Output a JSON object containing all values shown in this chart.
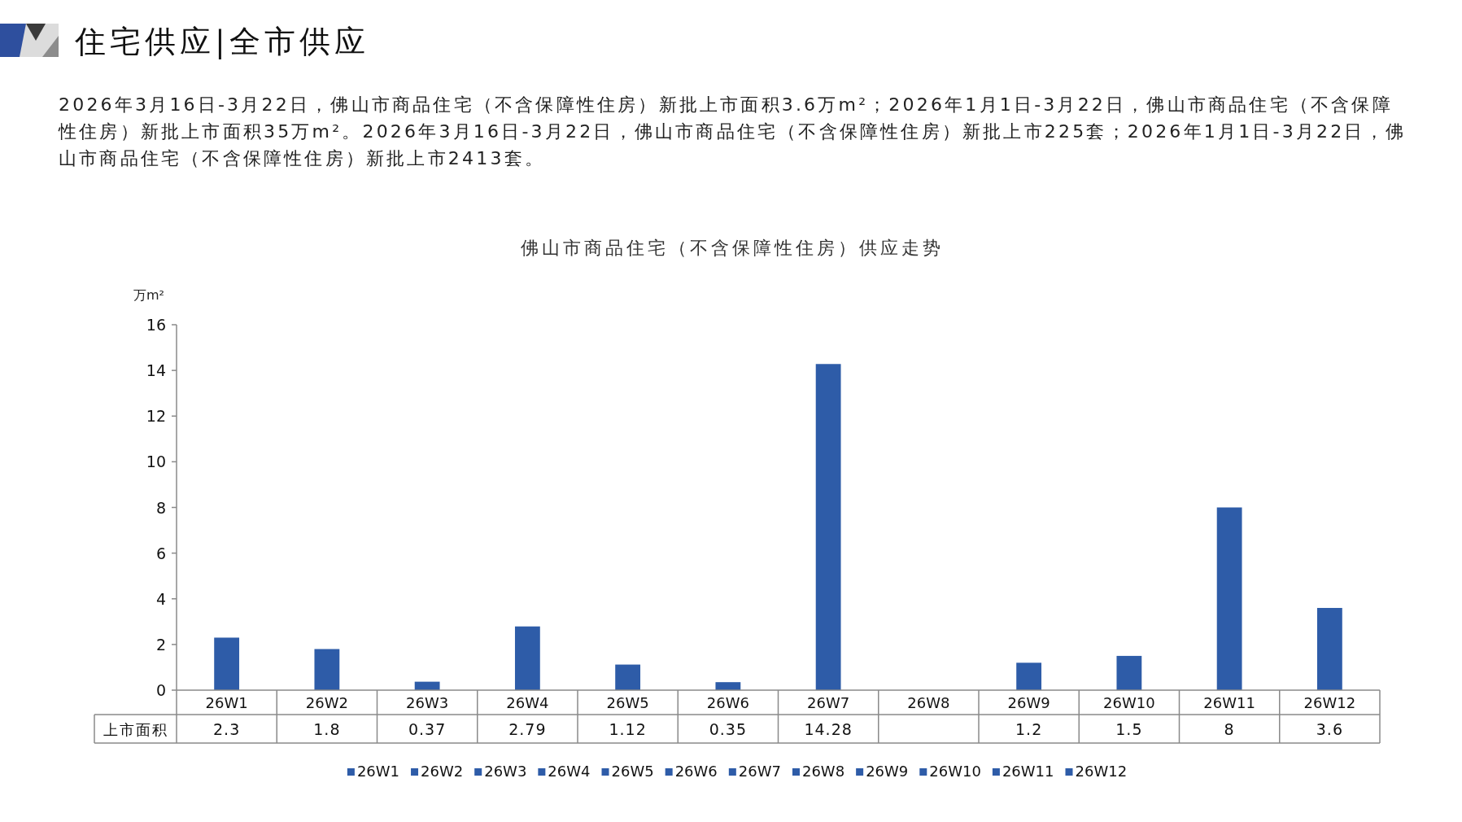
{
  "chart_data": {
    "type": "bar",
    "title": "住宅供应|全市供应",
    "subtitle": "佛山市商品住宅（不含保障性住房）供应走势",
    "annotations": [
      "2026年3月16日-3月22日，佛山市商品住宅（不含保障性住房）新批上市面积3.6万m²；2026年1月1日-3月22日，佛山市商品住宅（不含保障性住房）新批上市面积35万m²。2026年3月16日-3月22日，佛山市商品住宅（不含保障性住房）新批上市225套；2026年1月1日-3月22日，佛山市商品住宅（不含保障性住房）新批上市2413套。"
    ],
    "ylabel": "万m²",
    "categories": [
      "26W1",
      "26W2",
      "26W3",
      "26W4",
      "26W5",
      "26W6",
      "26W7",
      "26W8",
      "26W9",
      "26W10",
      "26W11",
      "26W12"
    ],
    "series": [
      {
        "name": "上市面积",
        "color": "#2e5ca8",
        "values": [
          2.3,
          1.8,
          0.37,
          2.79,
          1.12,
          0.35,
          14.28,
          null,
          1.2,
          1.5,
          8,
          3.6
        ]
      }
    ],
    "ylim": [
      0,
      16
    ],
    "yticks": [
      0,
      2,
      4,
      6,
      8,
      10,
      12,
      14,
      16
    ],
    "grid": false,
    "legend": "bottom",
    "data_labels": true
  }
}
